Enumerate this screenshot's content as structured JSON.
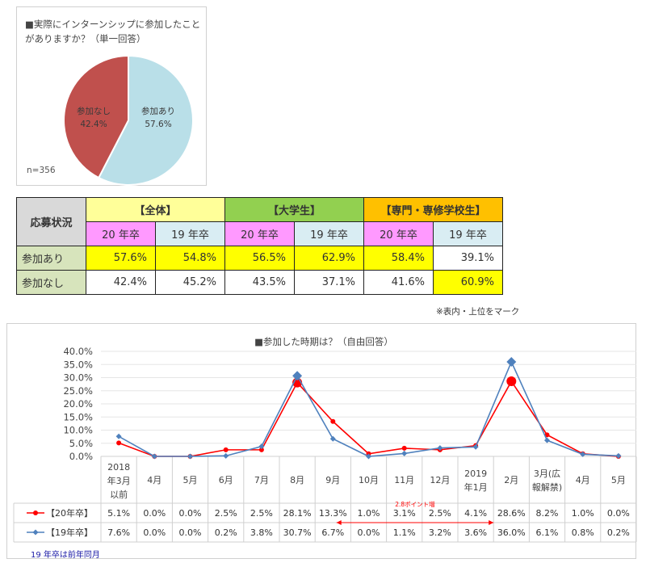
{
  "pie": {
    "title": "■実際にインターンシップに参加したことがありますか？（単一回答）",
    "n_label": "n=356",
    "chart_data": {
      "type": "pie",
      "slices": [
        {
          "label": "参加あり",
          "value": 57.6,
          "value_label": "57.6%",
          "color": "#b9dfe8"
        },
        {
          "label": "参加なし",
          "value": 42.4,
          "value_label": "42.4%",
          "color": "#c0504d"
        }
      ]
    }
  },
  "table": {
    "header_label": "応募状況",
    "groups": [
      "【全体】",
      "【大学生】",
      "【専門・専修学校生】"
    ],
    "year_labels": [
      "20 年卒",
      "19 年卒",
      "20 年卒",
      "19 年卒",
      "20 年卒",
      "19 年卒"
    ],
    "rows": [
      {
        "label": "参加あり",
        "values": [
          "57.6%",
          "54.8%",
          "56.5%",
          "62.9%",
          "58.4%",
          "39.1%"
        ]
      },
      {
        "label": "参加なし",
        "values": [
          "42.4%",
          "45.2%",
          "43.5%",
          "37.1%",
          "41.6%",
          "60.9%"
        ]
      }
    ],
    "note": "※表内・上位をマーク"
  },
  "chart_data": {
    "type": "line",
    "title": "■参加した時期は？（自由回答）",
    "categories": [
      "2018年3月以前",
      "4月",
      "5月",
      "6月",
      "7月",
      "8月",
      "9月",
      "10月",
      "11月",
      "12月",
      "2019年1月",
      "2月",
      "3月(広報解禁)",
      "4月",
      "5月"
    ],
    "category_lines": [
      [
        "2018",
        "年3月",
        "以前"
      ],
      [
        "4月"
      ],
      [
        "5月"
      ],
      [
        "6月"
      ],
      [
        "7月"
      ],
      [
        "8月"
      ],
      [
        "9月"
      ],
      [
        "10月"
      ],
      [
        "11月"
      ],
      [
        "12月"
      ],
      [
        "2019",
        "年1月"
      ],
      [
        "2月"
      ],
      [
        "3月(広",
        "報解禁)"
      ],
      [
        "4月"
      ],
      [
        "5月"
      ]
    ],
    "yticks": [
      "0.0%",
      "5.0%",
      "10.0%",
      "15.0%",
      "20.0%",
      "25.0%",
      "30.0%",
      "35.0%",
      "40.0%"
    ],
    "ylim": [
      0,
      40
    ],
    "series": [
      {
        "name": "【20年卒】",
        "color": "#ff0000",
        "marker": "circle",
        "values": [
          5.1,
          0.0,
          0.0,
          2.5,
          2.5,
          28.1,
          13.3,
          1.0,
          3.1,
          2.5,
          4.1,
          28.6,
          8.2,
          1.0,
          0.0
        ],
        "labels": [
          "5.1%",
          "0.0%",
          "0.0%",
          "2.5%",
          "2.5%",
          "28.1%",
          "13.3%",
          "1.0%",
          "3.1%",
          "2.5%",
          "4.1%",
          "28.6%",
          "8.2%",
          "1.0%",
          "0.0%"
        ]
      },
      {
        "name": "【19年卒】",
        "color": "#4f81bd",
        "marker": "diamond",
        "values": [
          7.6,
          0.0,
          0.0,
          0.2,
          3.8,
          30.7,
          6.7,
          0.0,
          1.1,
          3.2,
          3.6,
          36.0,
          6.1,
          0.8,
          0.2
        ],
        "labels": [
          "7.6%",
          "0.0%",
          "0.0%",
          "0.2%",
          "3.8%",
          "30.7%",
          "6.7%",
          "0.0%",
          "1.1%",
          "3.2%",
          "3.6%",
          "36.0%",
          "6.1%",
          "0.8%",
          "0.2%"
        ]
      }
    ],
    "annotation": "2.8ポイント増",
    "footnote": "19 年卒は前年同月"
  }
}
